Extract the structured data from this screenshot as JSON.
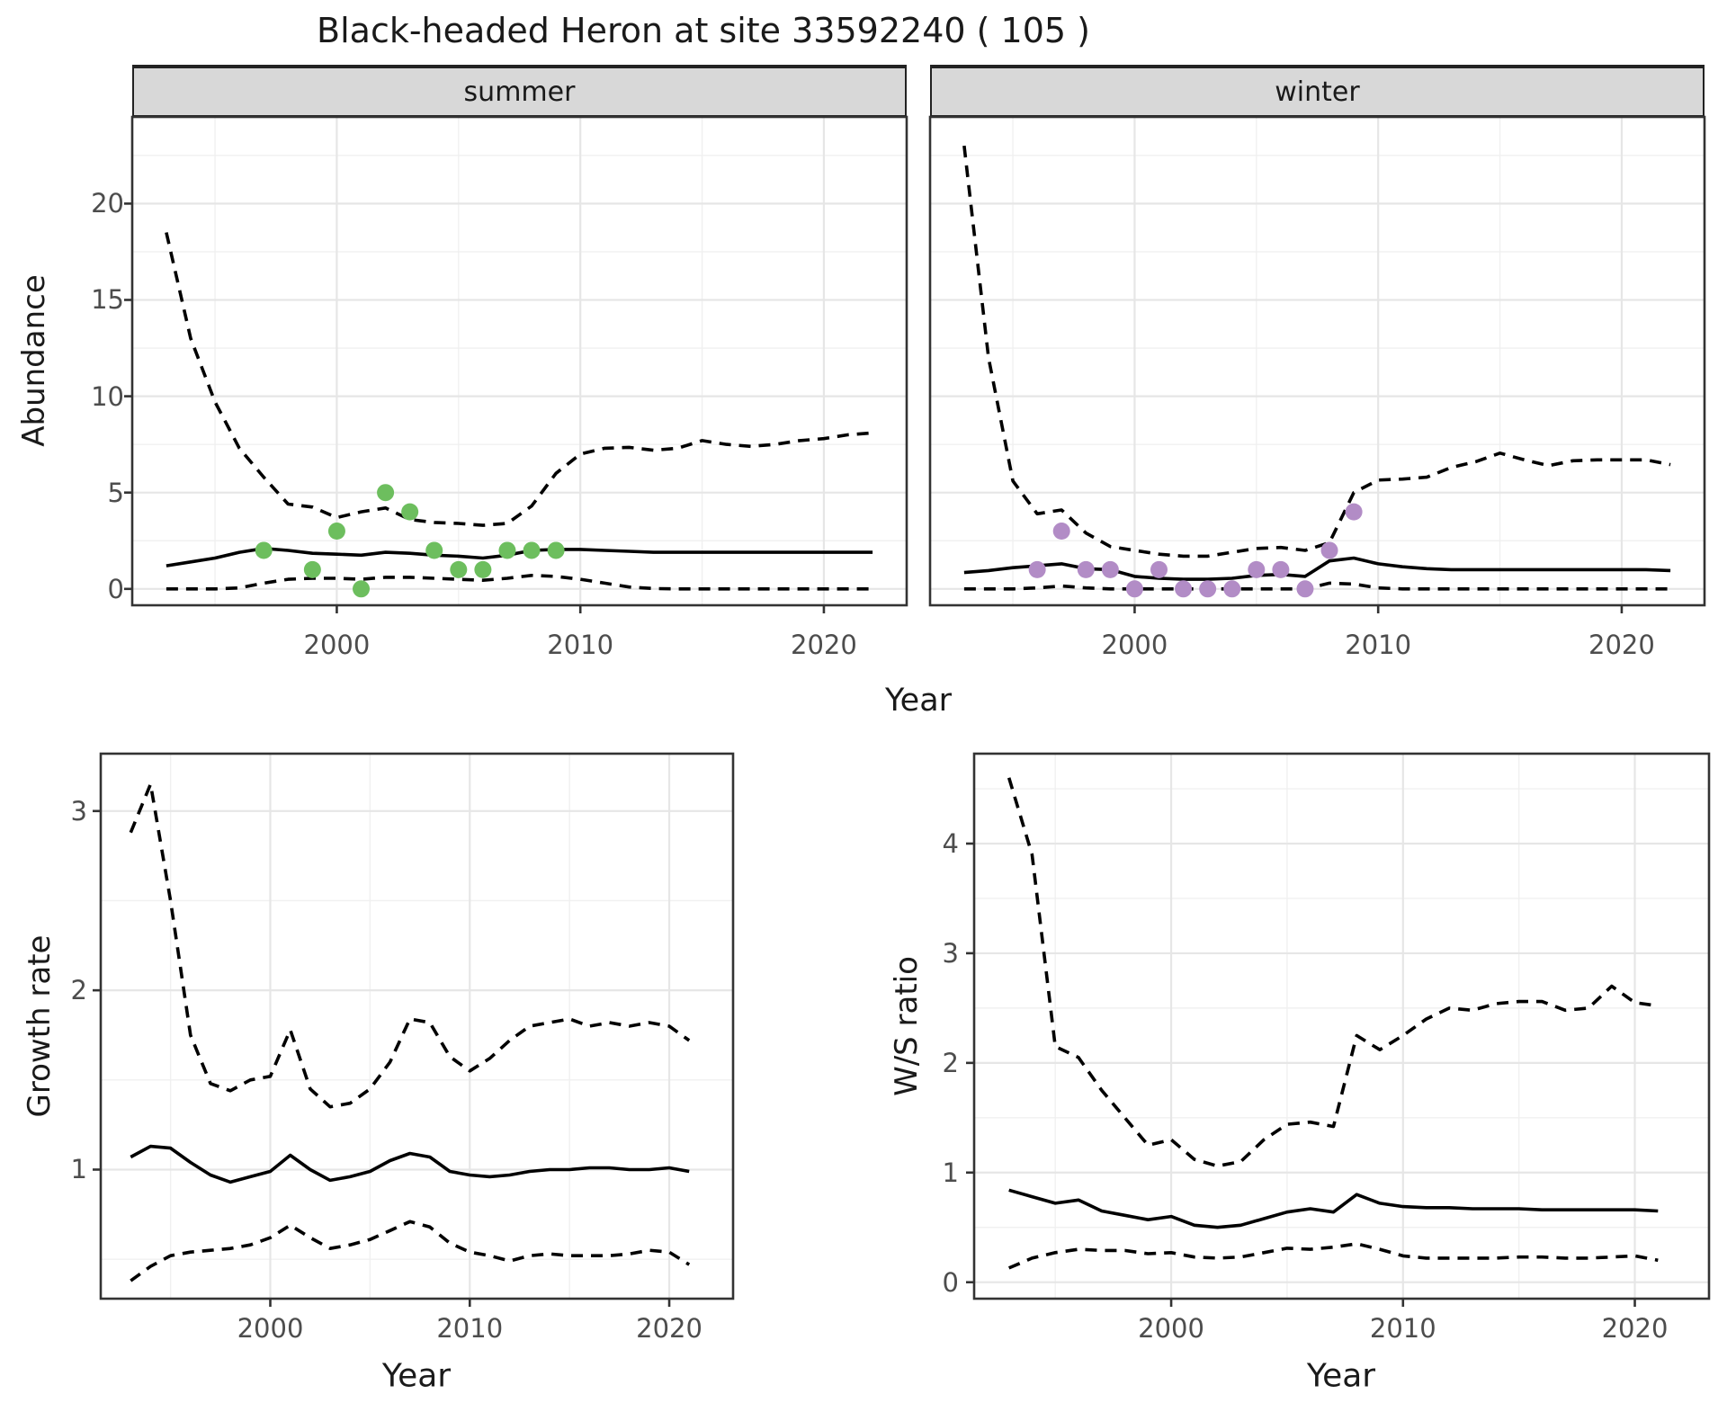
{
  "title": "Black-headed Heron at site 33592240 ( 105 )",
  "colors": {
    "bg": "#ffffff",
    "text": "#1a1a1a",
    "tick_text": "#4d4d4d",
    "panel_border": "#333333",
    "strip_bg": "#d8d8d8",
    "strip_border": "#222222",
    "grid_major": "#e6e6e6",
    "grid_minor": "#f0f0f0",
    "line": "#000000",
    "summer_point": "#6dbe5e",
    "winter_point": "#b28cc6"
  },
  "chart_data": [
    {
      "id": "abundance-summer",
      "type": "line",
      "facet_label": "summer",
      "xlabel": "Year",
      "ylabel": "Abundance",
      "xlim": [
        1991.6,
        2023.4
      ],
      "ylim": [
        -0.85,
        24.5
      ],
      "x_ticks": [
        2000,
        2010,
        2020
      ],
      "x_minor": [
        1995,
        2005,
        2015
      ],
      "y_ticks": [
        0,
        5,
        10,
        15,
        20
      ],
      "y_minor": [
        2.5,
        7.5,
        12.5,
        17.5,
        22.5
      ],
      "grid": true,
      "legend_position": "none",
      "years": [
        1993,
        1994,
        1995,
        1996,
        1997,
        1998,
        1999,
        2000,
        2001,
        2002,
        2003,
        2004,
        2005,
        2006,
        2007,
        2008,
        2009,
        2010,
        2011,
        2012,
        2013,
        2014,
        2015,
        2016,
        2017,
        2018,
        2019,
        2020,
        2021,
        2022
      ],
      "series": [
        {
          "name": "upper_95ci",
          "style": "dashed",
          "values": [
            18.5,
            13.0,
            9.7,
            7.3,
            5.8,
            4.4,
            4.25,
            3.7,
            4.0,
            4.2,
            3.6,
            3.45,
            3.4,
            3.3,
            3.4,
            4.3,
            6.0,
            7.0,
            7.3,
            7.35,
            7.2,
            7.3,
            7.7,
            7.5,
            7.4,
            7.5,
            7.7,
            7.8,
            8.0,
            8.1
          ]
        },
        {
          "name": "mean",
          "style": "solid",
          "values": [
            1.2,
            1.4,
            1.6,
            1.9,
            2.1,
            2.0,
            1.85,
            1.8,
            1.75,
            1.9,
            1.85,
            1.75,
            1.7,
            1.6,
            1.75,
            2.0,
            2.05,
            2.05,
            2.0,
            1.95,
            1.9,
            1.9,
            1.9,
            1.9,
            1.9,
            1.9,
            1.9,
            1.9,
            1.9,
            1.9
          ]
        },
        {
          "name": "lower_95ci",
          "style": "dashed",
          "values": [
            0,
            0,
            0,
            0.05,
            0.3,
            0.5,
            0.55,
            0.55,
            0.5,
            0.6,
            0.6,
            0.55,
            0.5,
            0.45,
            0.55,
            0.7,
            0.65,
            0.5,
            0.3,
            0.1,
            0.02,
            0,
            0,
            0,
            0,
            0,
            0,
            0,
            0,
            0
          ]
        }
      ],
      "points": {
        "name": "observed-summer-counts",
        "color_key": "summer_point",
        "years": [
          1997,
          1999,
          2000,
          2001,
          2002,
          2003,
          2004,
          2005,
          2006,
          2007,
          2008,
          2009
        ],
        "values": [
          2,
          1,
          3,
          0,
          5,
          4,
          2,
          1,
          1,
          2,
          2,
          2
        ]
      }
    },
    {
      "id": "abundance-winter",
      "type": "line",
      "facet_label": "winter",
      "xlabel": "Year",
      "ylabel": "Abundance",
      "xlim": [
        1991.6,
        2023.4
      ],
      "ylim": [
        -0.85,
        24.5
      ],
      "x_ticks": [
        2000,
        2010,
        2020
      ],
      "x_minor": [
        1995,
        2005,
        2015
      ],
      "y_ticks": [
        0,
        5,
        10,
        15,
        20
      ],
      "y_minor": [
        2.5,
        7.5,
        12.5,
        17.5,
        22.5
      ],
      "grid": true,
      "legend_position": "none",
      "years": [
        1993,
        1994,
        1995,
        1996,
        1997,
        1998,
        1999,
        2000,
        2001,
        2002,
        2003,
        2004,
        2005,
        2006,
        2007,
        2008,
        2009,
        2010,
        2011,
        2012,
        2013,
        2014,
        2015,
        2016,
        2017,
        2018,
        2019,
        2020,
        2021,
        2022
      ],
      "series": [
        {
          "name": "upper_95ci",
          "style": "dashed",
          "values": [
            23.0,
            12.0,
            5.6,
            3.9,
            4.1,
            2.9,
            2.2,
            2.0,
            1.8,
            1.7,
            1.7,
            1.9,
            2.1,
            2.15,
            2.0,
            2.4,
            5.0,
            5.65,
            5.7,
            5.8,
            6.3,
            6.6,
            7.05,
            6.7,
            6.4,
            6.65,
            6.7,
            6.7,
            6.7,
            6.45
          ]
        },
        {
          "name": "mean",
          "style": "solid",
          "values": [
            0.85,
            0.95,
            1.1,
            1.2,
            1.3,
            1.05,
            1.0,
            0.65,
            0.55,
            0.5,
            0.5,
            0.55,
            0.7,
            0.75,
            0.65,
            1.45,
            1.6,
            1.3,
            1.15,
            1.05,
            1.0,
            1.0,
            1.0,
            1.0,
            1.0,
            1.0,
            1.0,
            1.0,
            1.0,
            0.95
          ]
        },
        {
          "name": "lower_95ci",
          "style": "dashed",
          "values": [
            0,
            0,
            0,
            0.05,
            0.15,
            0.05,
            0,
            0,
            0,
            0,
            0,
            0,
            0,
            0,
            0,
            0.3,
            0.25,
            0.05,
            0,
            0,
            0,
            0,
            0,
            0,
            0,
            0,
            0,
            0,
            0,
            0
          ]
        }
      ],
      "points": {
        "name": "observed-winter-counts",
        "color_key": "winter_point",
        "years": [
          1996,
          1997,
          1998,
          1999,
          2000,
          2001,
          2002,
          2003,
          2004,
          2005,
          2006,
          2007,
          2008,
          2009
        ],
        "values": [
          1,
          3,
          1,
          1,
          0,
          1,
          0,
          0,
          0,
          1,
          1,
          0,
          2,
          4
        ]
      }
    },
    {
      "id": "growth-rate",
      "type": "line",
      "facet_label": "",
      "xlabel": "Year",
      "ylabel": "Growth rate",
      "xlim": [
        1991.5,
        2023.2
      ],
      "ylim": [
        0.28,
        3.32
      ],
      "x_ticks": [
        2000,
        2010,
        2020
      ],
      "x_minor": [
        1995,
        2005,
        2015
      ],
      "y_ticks": [
        1,
        2,
        3
      ],
      "y_minor": [
        0.5,
        1.5,
        2.5
      ],
      "grid": true,
      "legend_position": "none",
      "years": [
        1993,
        1994,
        1995,
        1996,
        1997,
        1998,
        1999,
        2000,
        2001,
        2002,
        2003,
        2004,
        2005,
        2006,
        2007,
        2008,
        2009,
        2010,
        2011,
        2012,
        2013,
        2014,
        2015,
        2016,
        2017,
        2018,
        2019,
        2020,
        2021
      ],
      "series": [
        {
          "name": "upper_95ci",
          "style": "dashed",
          "values": [
            2.88,
            3.15,
            2.5,
            1.75,
            1.48,
            1.44,
            1.5,
            1.52,
            1.78,
            1.45,
            1.35,
            1.37,
            1.45,
            1.6,
            1.84,
            1.82,
            1.63,
            1.55,
            1.62,
            1.72,
            1.8,
            1.82,
            1.84,
            1.8,
            1.82,
            1.8,
            1.82,
            1.8,
            1.72
          ]
        },
        {
          "name": "mean",
          "style": "solid",
          "values": [
            1.07,
            1.13,
            1.12,
            1.04,
            0.97,
            0.93,
            0.96,
            0.99,
            1.08,
            1.0,
            0.94,
            0.96,
            0.99,
            1.05,
            1.09,
            1.07,
            0.99,
            0.97,
            0.96,
            0.97,
            0.99,
            1.0,
            1.0,
            1.01,
            1.01,
            1.0,
            1.0,
            1.01,
            0.99
          ]
        },
        {
          "name": "lower_95ci",
          "style": "dashed",
          "values": [
            0.38,
            0.46,
            0.52,
            0.54,
            0.55,
            0.56,
            0.58,
            0.62,
            0.69,
            0.62,
            0.56,
            0.58,
            0.61,
            0.66,
            0.71,
            0.68,
            0.59,
            0.54,
            0.52,
            0.49,
            0.52,
            0.53,
            0.52,
            0.52,
            0.52,
            0.53,
            0.55,
            0.54,
            0.47
          ]
        }
      ],
      "points": null
    },
    {
      "id": "ws-ratio",
      "type": "line",
      "facet_label": "",
      "xlabel": "Year",
      "ylabel": "W/S ratio",
      "xlim": [
        1991.5,
        2023.2
      ],
      "ylim": [
        -0.15,
        4.82
      ],
      "x_ticks": [
        2000,
        2010,
        2020
      ],
      "x_minor": [
        1995,
        2005,
        2015
      ],
      "y_ticks": [
        0,
        1,
        2,
        3,
        4
      ],
      "y_minor": [
        0.5,
        1.5,
        2.5,
        3.5,
        4.5
      ],
      "grid": true,
      "legend_position": "none",
      "years": [
        1993,
        1994,
        1995,
        1996,
        1997,
        1998,
        1999,
        2000,
        2001,
        2002,
        2003,
        2004,
        2005,
        2006,
        2007,
        2008,
        2009,
        2010,
        2011,
        2012,
        2013,
        2014,
        2015,
        2016,
        2017,
        2018,
        2019,
        2020,
        2021
      ],
      "series": [
        {
          "name": "upper_95ci",
          "style": "dashed",
          "values": [
            4.6,
            3.9,
            2.15,
            2.05,
            1.75,
            1.5,
            1.25,
            1.3,
            1.12,
            1.06,
            1.1,
            1.3,
            1.44,
            1.46,
            1.42,
            2.25,
            2.12,
            2.25,
            2.4,
            2.5,
            2.48,
            2.54,
            2.56,
            2.56,
            2.48,
            2.5,
            2.7,
            2.55,
            2.52
          ]
        },
        {
          "name": "mean",
          "style": "solid",
          "values": [
            0.84,
            0.78,
            0.72,
            0.75,
            0.65,
            0.61,
            0.57,
            0.6,
            0.52,
            0.5,
            0.52,
            0.58,
            0.64,
            0.67,
            0.64,
            0.8,
            0.72,
            0.69,
            0.68,
            0.68,
            0.67,
            0.67,
            0.67,
            0.66,
            0.66,
            0.66,
            0.66,
            0.66,
            0.65
          ]
        },
        {
          "name": "lower_95ci",
          "style": "dashed",
          "values": [
            0.13,
            0.22,
            0.27,
            0.3,
            0.29,
            0.29,
            0.26,
            0.27,
            0.23,
            0.22,
            0.23,
            0.27,
            0.31,
            0.3,
            0.32,
            0.35,
            0.3,
            0.24,
            0.22,
            0.22,
            0.22,
            0.22,
            0.23,
            0.23,
            0.22,
            0.22,
            0.23,
            0.24,
            0.2
          ]
        }
      ],
      "points": null
    }
  ]
}
